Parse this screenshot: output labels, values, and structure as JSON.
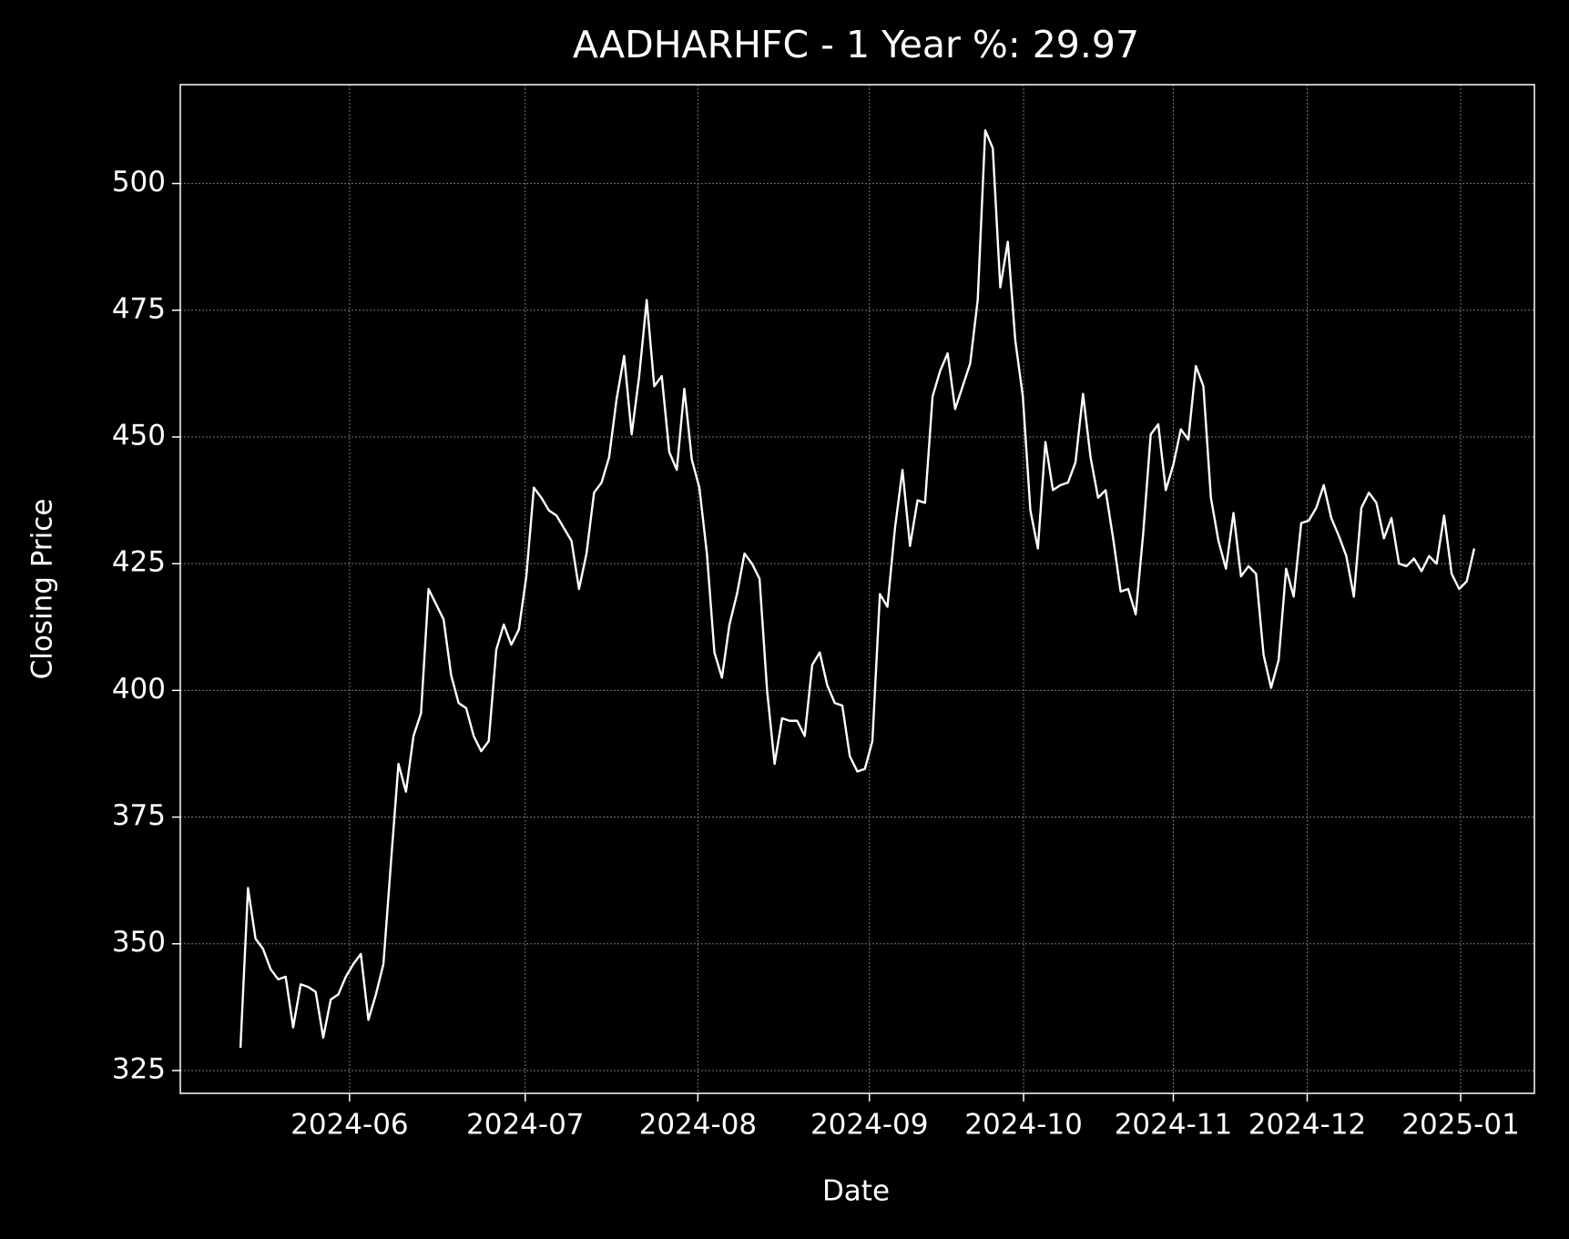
{
  "chart_data": {
    "type": "line",
    "title": "AADHARHFC - 1 Year %: 29.97",
    "x_label": "Date",
    "y_label": "Closing Price",
    "grid": true,
    "background": "#000000",
    "series": [
      {
        "color": "#ffffff",
        "values": [
          329.5,
          361,
          351,
          349,
          345,
          343,
          343.5,
          333.5,
          342,
          341.5,
          340.5,
          331.5,
          339,
          340,
          343.5,
          346,
          348,
          335,
          340,
          346,
          366,
          385.5,
          380,
          391,
          395.5,
          420,
          417,
          414,
          403,
          397.5,
          396.5,
          391,
          388,
          390,
          408,
          413,
          409,
          412,
          422.5,
          440,
          438,
          435.5,
          434.5,
          432,
          429.5,
          420,
          427,
          439,
          441,
          446,
          457.5,
          466,
          450.5,
          462,
          477,
          460,
          462,
          447,
          443.5,
          459.5,
          445.5,
          440,
          427,
          407.5,
          402.5,
          413,
          419,
          427,
          425,
          422,
          400,
          385.5,
          394.5,
          394,
          394,
          391,
          405,
          407.5,
          401,
          397.5,
          397,
          387,
          384,
          384.5,
          390,
          419,
          416.5,
          432,
          443.5,
          428.5,
          437.5,
          437,
          458,
          463,
          466.5,
          455.5,
          460,
          464.5,
          477,
          510.5,
          507,
          479.5,
          488.5,
          469,
          458,
          435.5,
          428,
          449,
          439.5,
          440.5,
          441,
          445,
          458.5,
          446,
          438,
          439.5,
          430,
          419.5,
          420,
          415,
          431,
          450.5,
          452.5,
          439.5,
          444.5,
          451.5,
          449.5,
          464,
          460,
          438,
          429.5,
          424,
          435,
          422.5,
          424.5,
          423,
          407,
          400.5,
          406,
          424,
          418.5,
          433,
          433.5,
          436,
          440.5,
          434,
          430.5,
          426.5,
          418.5,
          436,
          439,
          437,
          430,
          434,
          425,
          424.5,
          426,
          423.5,
          426.5,
          425,
          434.5,
          423,
          420,
          421.5,
          428
        ]
      }
    ],
    "xlim": [
      -8,
      172
    ],
    "xticks": [
      {
        "value": 14.5,
        "label": "2024-06"
      },
      {
        "value": 37.85,
        "label": "2024-07"
      },
      {
        "value": 60.8,
        "label": "2024-08"
      },
      {
        "value": 83.6,
        "label": "2024-09"
      },
      {
        "value": 104.1,
        "label": "2024-10"
      },
      {
        "value": 124,
        "label": "2024-11"
      },
      {
        "value": 141.8,
        "label": "2024-12"
      },
      {
        "value": 162.2,
        "label": "2025-01"
      }
    ],
    "ylim": [
      320.5,
      519.5
    ],
    "yticks": [
      325,
      350,
      375,
      400,
      425,
      450,
      475,
      500
    ]
  }
}
